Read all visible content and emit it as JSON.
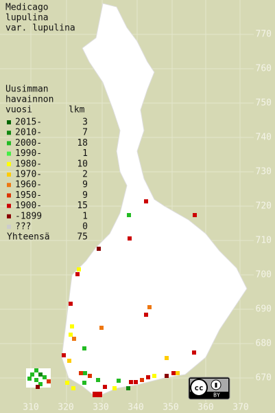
{
  "title": [
    "Medicago",
    "lupulina",
    "var. lupulina"
  ],
  "legend": {
    "header": [
      "Uusimman",
      "havainnon"
    ],
    "col_period": "vuosi",
    "col_count": "lkm",
    "rows": [
      {
        "period": "2015-",
        "count": 3,
        "color": "#006600"
      },
      {
        "period": "2010-",
        "count": 7,
        "color": "#118811"
      },
      {
        "period": "2000-",
        "count": 18,
        "color": "#22bb22"
      },
      {
        "period": "1990-",
        "count": 1,
        "color": "#44ee44"
      },
      {
        "period": "1980-",
        "count": 10,
        "color": "#ffff00"
      },
      {
        "period": "1970-",
        "count": 2,
        "color": "#ffcc00"
      },
      {
        "period": "1960-",
        "count": 9,
        "color": "#ee7711"
      },
      {
        "period": "1950-",
        "count": 9,
        "color": "#dd3300"
      },
      {
        "period": "1900-",
        "count": 15,
        "color": "#cc0000"
      },
      {
        "period": "-1899",
        "count": 1,
        "color": "#880000"
      },
      {
        "period": "???",
        "count": 0,
        "color": "#cccccc"
      }
    ],
    "total_label": "Yhteensä",
    "total": 75
  },
  "axes": {
    "right": [
      770,
      760,
      750,
      740,
      730,
      720,
      710,
      700,
      690,
      680,
      670
    ],
    "bottom": [
      310,
      320,
      330,
      340,
      350,
      360,
      370
    ]
  },
  "badge": {
    "cc": "cc",
    "by": "BY"
  }
}
